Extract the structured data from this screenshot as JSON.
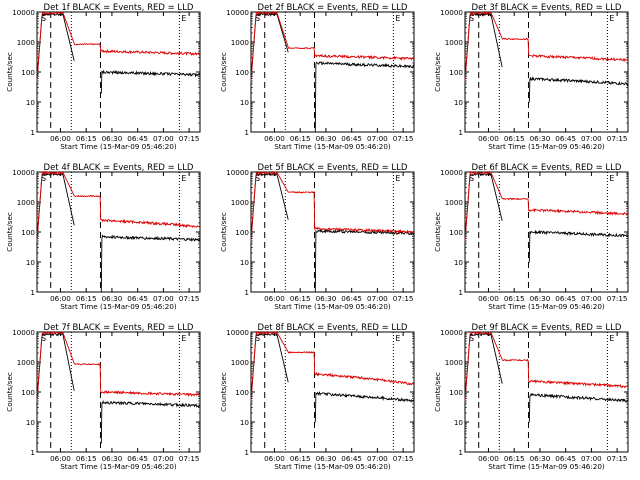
{
  "chart_data": [
    {
      "type": "line",
      "title": "Det 1f BLACK = Events, RED = LLD",
      "xlabel": "Start Time (15-Mar-09 05:46:20)",
      "ylabel": "Counts/sec",
      "x_ticks": [
        "06:00",
        "06:15",
        "06:30",
        "06:45",
        "07:00",
        "07:15"
      ],
      "y_ticks": [
        "1",
        "10",
        "100",
        "1000",
        "10000"
      ],
      "y_log": true,
      "markers": [
        "S",
        "E"
      ],
      "series": [
        {
          "color": "#000000",
          "plateau": 100,
          "end": 80,
          "drop_min": 20,
          "peak": 9000
        },
        {
          "color": "#dd0000",
          "plateau": 500,
          "end": 400,
          "knee": 800,
          "peak": 10000
        }
      ]
    },
    {
      "type": "line",
      "title": "Det 2f BLACK = Events, RED = LLD",
      "xlabel": "Start Time (15-Mar-09 05:46:20)",
      "ylabel": "Counts/sec",
      "x_ticks": [
        "06:00",
        "06:15",
        "06:30",
        "06:45",
        "07:00",
        "07:15"
      ],
      "y_ticks": [
        "1",
        "10",
        "100",
        "1000",
        "10000"
      ],
      "y_log": true,
      "markers": [
        "S",
        "E"
      ],
      "series": [
        {
          "color": "#000000",
          "plateau": 200,
          "end": 150,
          "drop_min": 1,
          "peak": 9000
        },
        {
          "color": "#dd0000",
          "plateau": 350,
          "end": 280,
          "knee": 600,
          "peak": 10000
        }
      ]
    },
    {
      "type": "line",
      "title": "Det 3f BLACK = Events, RED = LLD",
      "xlabel": "Start Time (15-Mar-09 05:46:20)",
      "ylabel": "Counts/sec",
      "x_ticks": [
        "06:00",
        "06:15",
        "06:30",
        "06:45",
        "07:00",
        "07:15"
      ],
      "y_ticks": [
        "1",
        "10",
        "100",
        "1000",
        "10000"
      ],
      "y_log": true,
      "markers": [
        "S",
        "E"
      ],
      "series": [
        {
          "color": "#000000",
          "plateau": 60,
          "end": 40,
          "drop_min": 10,
          "peak": 9000
        },
        {
          "color": "#dd0000",
          "plateau": 350,
          "end": 250,
          "knee": 1200,
          "peak": 10000
        }
      ]
    },
    {
      "type": "line",
      "title": "Det 4f BLACK = Events, RED = LLD",
      "xlabel": "Start Time (15-Mar-09 05:46:20)",
      "ylabel": "Counts/sec",
      "x_ticks": [
        "06:00",
        "06:15",
        "06:30",
        "06:45",
        "07:00",
        "07:15"
      ],
      "y_ticks": [
        "1",
        "10",
        "100",
        "1000",
        "10000"
      ],
      "y_log": true,
      "markers": [
        "S",
        "E"
      ],
      "series": [
        {
          "color": "#000000",
          "plateau": 70,
          "end": 55,
          "drop_min": 1,
          "peak": 9000
        },
        {
          "color": "#dd0000",
          "plateau": 250,
          "end": 150,
          "knee": 1500,
          "peak": 10000
        }
      ]
    },
    {
      "type": "line",
      "title": "Det 5f BLACK = Events, RED = LLD",
      "xlabel": "Start Time (15-Mar-09 05:46:20)",
      "ylabel": "Counts/sec",
      "x_ticks": [
        "06:00",
        "06:15",
        "06:30",
        "06:45",
        "07:00",
        "07:15"
      ],
      "y_ticks": [
        "1",
        "10",
        "100",
        "1000",
        "10000"
      ],
      "y_log": true,
      "markers": [
        "S",
        "E"
      ],
      "series": [
        {
          "color": "#000000",
          "plateau": 110,
          "end": 90,
          "drop_min": 1,
          "peak": 9000
        },
        {
          "color": "#dd0000",
          "plateau": 130,
          "end": 100,
          "knee": 2000,
          "peak": 10000
        }
      ]
    },
    {
      "type": "line",
      "title": "Det 6f BLACK = Events, RED = LLD",
      "xlabel": "Start Time (15-Mar-09 05:46:20)",
      "ylabel": "Counts/sec",
      "x_ticks": [
        "06:00",
        "06:15",
        "06:30",
        "06:45",
        "07:00",
        "07:15"
      ],
      "y_ticks": [
        "1",
        "10",
        "100",
        "1000",
        "10000"
      ],
      "y_log": true,
      "markers": [
        "S",
        "E"
      ],
      "series": [
        {
          "color": "#000000",
          "plateau": 100,
          "end": 75,
          "drop_min": 10,
          "peak": 9000
        },
        {
          "color": "#dd0000",
          "plateau": 550,
          "end": 400,
          "knee": 1200,
          "peak": 10000
        }
      ]
    },
    {
      "type": "line",
      "title": "Det 7f BLACK = Events, RED = LLD",
      "xlabel": "Start Time (15-Mar-09 05:46:20)",
      "ylabel": "Counts/sec",
      "x_ticks": [
        "06:00",
        "06:15",
        "06:30",
        "06:45",
        "07:00",
        "07:15"
      ],
      "y_ticks": [
        "1",
        "10",
        "100",
        "1000",
        "10000"
      ],
      "y_log": true,
      "markers": [
        "S",
        "E"
      ],
      "series": [
        {
          "color": "#000000",
          "plateau": 45,
          "end": 35,
          "drop_min": 2,
          "peak": 9000
        },
        {
          "color": "#dd0000",
          "plateau": 100,
          "end": 80,
          "knee": 800,
          "peak": 10000
        }
      ]
    },
    {
      "type": "line",
      "title": "Det 8f BLACK = Events, RED = LLD",
      "xlabel": "Start Time (15-Mar-09 05:46:20)",
      "ylabel": "Counts/sec",
      "x_ticks": [
        "06:00",
        "06:15",
        "06:30",
        "06:45",
        "07:00",
        "07:15"
      ],
      "y_ticks": [
        "1",
        "10",
        "100",
        "1000",
        "10000"
      ],
      "y_log": true,
      "markers": [
        "S",
        "E"
      ],
      "series": [
        {
          "color": "#000000",
          "plateau": 90,
          "end": 50,
          "drop_min": 10,
          "peak": 9000
        },
        {
          "color": "#dd0000",
          "plateau": 400,
          "end": 180,
          "knee": 2000,
          "peak": 10000
        }
      ]
    },
    {
      "type": "line",
      "title": "Det 9f BLACK = Events, RED = LLD",
      "xlabel": "Start Time (15-Mar-09 05:46:20)",
      "ylabel": "Counts/sec",
      "x_ticks": [
        "06:00",
        "06:15",
        "06:30",
        "06:45",
        "07:00",
        "07:15"
      ],
      "y_ticks": [
        "1",
        "10",
        "100",
        "1000",
        "10000"
      ],
      "y_log": true,
      "markers": [
        "S",
        "E"
      ],
      "series": [
        {
          "color": "#000000",
          "plateau": 80,
          "end": 50,
          "drop_min": 10,
          "peak": 9000
        },
        {
          "color": "#dd0000",
          "plateau": 230,
          "end": 150,
          "knee": 1100,
          "peak": 10000
        }
      ]
    }
  ]
}
